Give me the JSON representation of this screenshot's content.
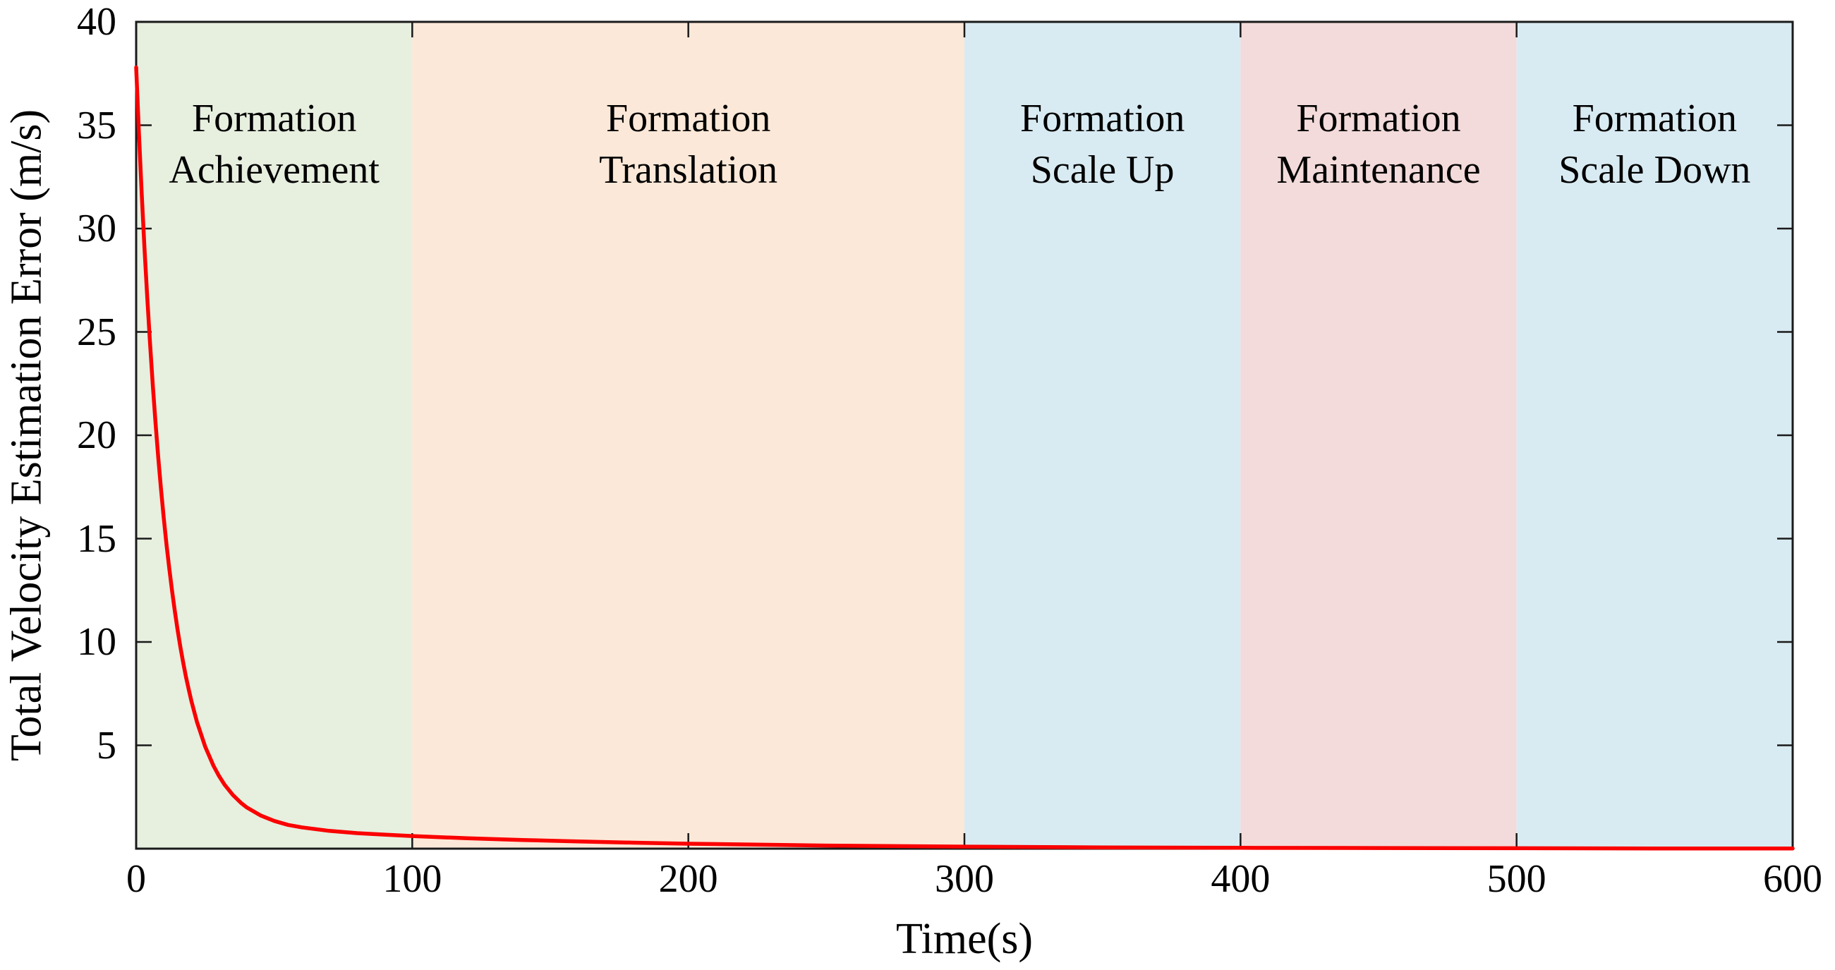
{
  "figure": {
    "background_color": "#ffffff",
    "axis_color": "#1a1a1a",
    "text_color": "#000000"
  },
  "chart_data": {
    "type": "line",
    "title": "",
    "xlabel": "Time(s)",
    "ylabel": "Total Velocity Estimation Error (m/s)",
    "xlim": [
      0,
      600
    ],
    "ylim": [
      0,
      40
    ],
    "x_ticks": [
      0,
      100,
      200,
      300,
      400,
      500,
      600
    ],
    "y_ticks": [
      5,
      10,
      15,
      20,
      25,
      30,
      35,
      40
    ],
    "grid": false,
    "legend": "none",
    "regions": [
      {
        "label": "Formation\nAchievement",
        "x_start": 0,
        "x_end": 100,
        "color": "#e7efdf"
      },
      {
        "label": "Formation\nTranslation",
        "x_start": 100,
        "x_end": 300,
        "color": "#fce8d8"
      },
      {
        "label": "Formation\nScale Up",
        "x_start": 300,
        "x_end": 400,
        "color": "#d9ebf2"
      },
      {
        "label": "Formation\nMaintenance",
        "x_start": 400,
        "x_end": 500,
        "color": "#f2dbda"
      },
      {
        "label": "Formation\nScale Down",
        "x_start": 500,
        "x_end": 600,
        "color": "#d9ebf2"
      }
    ],
    "series": [
      {
        "name": "total-velocity-estimation-error",
        "color": "#fa0000",
        "points": [
          [
            0,
            37.8
          ],
          [
            1,
            34.63
          ],
          [
            2,
            31.73
          ],
          [
            3,
            29.1
          ],
          [
            4,
            26.68
          ],
          [
            5,
            24.48
          ],
          [
            6,
            22.46
          ],
          [
            7,
            20.62
          ],
          [
            8,
            18.93
          ],
          [
            9,
            17.4
          ],
          [
            10,
            16.0
          ],
          [
            11,
            14.71
          ],
          [
            12,
            13.54
          ],
          [
            13,
            12.47
          ],
          [
            14,
            11.49
          ],
          [
            15,
            10.59
          ],
          [
            16,
            9.77
          ],
          [
            17,
            9.03
          ],
          [
            18,
            8.34
          ],
          [
            19,
            7.72
          ],
          [
            20,
            7.14
          ],
          [
            22,
            6.14
          ],
          [
            25,
            4.94
          ],
          [
            28,
            4.01
          ],
          [
            30,
            3.52
          ],
          [
            32,
            3.1
          ],
          [
            35,
            2.6
          ],
          [
            38,
            2.21
          ],
          [
            40,
            2.0
          ],
          [
            45,
            1.61
          ],
          [
            50,
            1.34
          ],
          [
            55,
            1.15
          ],
          [
            60,
            1.03
          ],
          [
            70,
            0.86
          ],
          [
            80,
            0.75
          ],
          [
            90,
            0.68
          ],
          [
            100,
            0.61
          ],
          [
            120,
            0.5
          ],
          [
            140,
            0.42
          ],
          [
            160,
            0.35
          ],
          [
            180,
            0.29
          ],
          [
            200,
            0.24
          ],
          [
            250,
            0.15
          ],
          [
            300,
            0.1
          ],
          [
            350,
            0.06
          ],
          [
            400,
            0.04
          ],
          [
            450,
            0.03
          ],
          [
            500,
            0.02
          ],
          [
            550,
            0.01
          ],
          [
            600,
            0.01
          ]
        ]
      }
    ]
  }
}
